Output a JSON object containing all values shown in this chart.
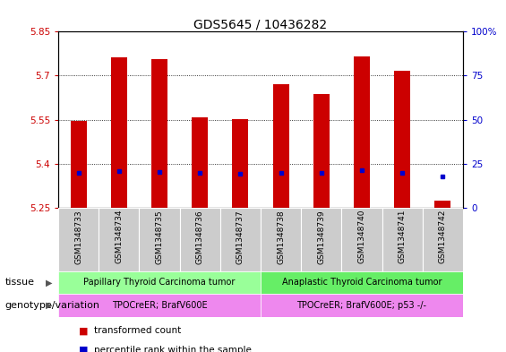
{
  "title": "GDS5645 / 10436282",
  "samples": [
    "GSM1348733",
    "GSM1348734",
    "GSM1348735",
    "GSM1348736",
    "GSM1348737",
    "GSM1348738",
    "GSM1348739",
    "GSM1348740",
    "GSM1348741",
    "GSM1348742"
  ],
  "bar_tops": [
    5.545,
    5.762,
    5.757,
    5.558,
    5.553,
    5.672,
    5.638,
    5.765,
    5.718,
    5.275
  ],
  "bar_bottoms": [
    5.25,
    5.25,
    5.25,
    5.25,
    5.25,
    5.25,
    5.25,
    5.25,
    5.25,
    5.25
  ],
  "percentile_values": [
    5.368,
    5.375,
    5.373,
    5.368,
    5.366,
    5.368,
    5.368,
    5.378,
    5.37,
    5.355
  ],
  "ylim_left": [
    5.25,
    5.85
  ],
  "ylim_right": [
    0,
    100
  ],
  "yticks_left": [
    5.25,
    5.4,
    5.55,
    5.7,
    5.85
  ],
  "yticks_right": [
    0,
    25,
    50,
    75,
    100
  ],
  "ytick_labels_left": [
    "5.25",
    "5.4",
    "5.55",
    "5.7",
    "5.85"
  ],
  "ytick_labels_right": [
    "0",
    "25",
    "50",
    "75",
    "100%"
  ],
  "bar_color": "#cc0000",
  "percentile_color": "#0000cc",
  "tissue_groups": [
    {
      "label": "Papillary Thyroid Carcinoma tumor",
      "start": 0,
      "end": 5,
      "color": "#99ff99"
    },
    {
      "label": "Anaplastic Thyroid Carcinoma tumor",
      "start": 5,
      "end": 10,
      "color": "#66ee66"
    }
  ],
  "genotype_groups": [
    {
      "label": "TPOCreER; BrafV600E",
      "start": 0,
      "end": 5,
      "color": "#ee88ee"
    },
    {
      "label": "TPOCreER; BrafV600E; p53 -/-",
      "start": 5,
      "end": 10,
      "color": "#ee88ee"
    }
  ],
  "tissue_label": "tissue",
  "genotype_label": "genotype/variation",
  "legend_items": [
    {
      "label": "transformed count",
      "color": "#cc0000"
    },
    {
      "label": "percentile rank within the sample",
      "color": "#0000cc"
    }
  ],
  "plot_bg_color": "#ffffff",
  "title_fontsize": 10,
  "axis_label_color_left": "#cc0000",
  "axis_label_color_right": "#0000cc",
  "bar_width": 0.4,
  "sample_bg_color": "#cccccc",
  "sample_sep_color": "#ffffff"
}
